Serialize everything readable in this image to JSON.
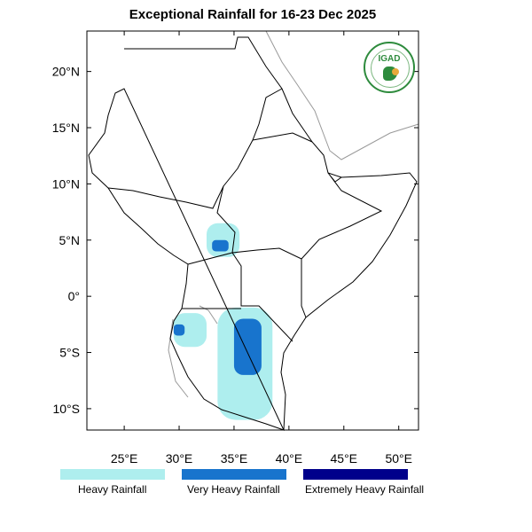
{
  "title": "Exceptional Rainfall for 16-23 Dec 2025",
  "logo": {
    "text": "IGAD",
    "icon": "igad-logo"
  },
  "axes": {
    "x_ticks": [
      {
        "lon": 25,
        "label": "25°E"
      },
      {
        "lon": 30,
        "label": "30°E"
      },
      {
        "lon": 35,
        "label": "35°E"
      },
      {
        "lon": 40,
        "label": "40°E"
      },
      {
        "lon": 45,
        "label": "45°E"
      },
      {
        "lon": 50,
        "label": "50°E"
      }
    ],
    "y_ticks": [
      {
        "lat": 20,
        "label": "20°N"
      },
      {
        "lat": 15,
        "label": "15°N"
      },
      {
        "lat": 10,
        "label": "10°N"
      },
      {
        "lat": 5,
        "label": "5°N"
      },
      {
        "lat": 0,
        "label": "0°"
      },
      {
        "lat": -5,
        "label": "5°S"
      },
      {
        "lat": -10,
        "label": "10°S"
      }
    ],
    "lon_range": [
      21.6,
      51.8
    ],
    "lat_range": [
      -11.9,
      23.6
    ]
  },
  "legend": [
    {
      "label": "Heavy Rainfall",
      "color": "#aeeeee"
    },
    {
      "label": "Very Heavy Rainfall",
      "color": "#1874cd"
    },
    {
      "label": "Extremely Heavy Rainfall",
      "color": "#00008b"
    }
  ],
  "rainfall_areas": [
    {
      "category": "Heavy Rainfall",
      "lon": [
        33.5,
        38.5
      ],
      "lat": [
        -11,
        -1
      ]
    },
    {
      "category": "Heavy Rainfall",
      "lon": [
        29.5,
        32.5
      ],
      "lat": [
        -4.5,
        -1.5
      ]
    },
    {
      "category": "Heavy Rainfall",
      "lon": [
        32.5,
        35.5
      ],
      "lat": [
        3.5,
        6.5
      ]
    },
    {
      "category": "Very Heavy Rainfall",
      "lon": [
        35,
        37.5
      ],
      "lat": [
        -7,
        -2
      ]
    },
    {
      "category": "Very Heavy Rainfall",
      "lon": [
        29.5,
        30.5
      ],
      "lat": [
        -3.5,
        -2.5
      ]
    },
    {
      "category": "Very Heavy Rainfall",
      "lon": [
        33,
        34.5
      ],
      "lat": [
        4,
        5
      ]
    }
  ]
}
